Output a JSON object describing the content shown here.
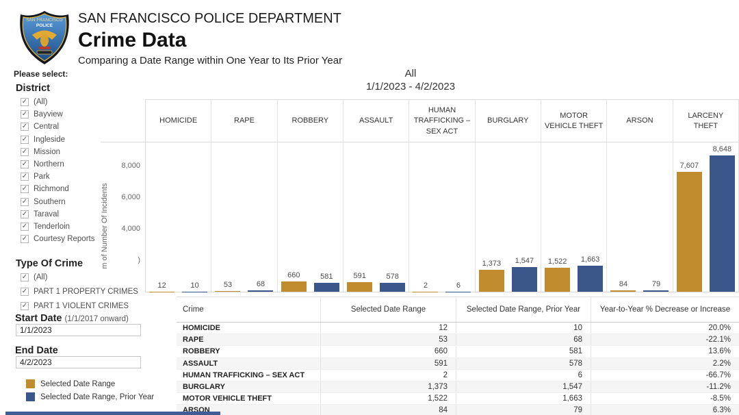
{
  "header": {
    "department": "SAN FRANCISCO POLICE DEPARTMENT",
    "title": "Crime Data",
    "subtitle": "Comparing a Date Range within One Year to Its Prior Year",
    "logo_text": {
      "line1": "SAN FRANCISCO",
      "line2": "POLICE"
    }
  },
  "sidebar": {
    "prompt": "Please select:",
    "district": {
      "label": "District",
      "options": [
        {
          "label": "(All)",
          "checked": true
        },
        {
          "label": "Bayview",
          "checked": true
        },
        {
          "label": "Central",
          "checked": true
        },
        {
          "label": "Ingleside",
          "checked": true
        },
        {
          "label": "Mission",
          "checked": true
        },
        {
          "label": "Northern",
          "checked": true
        },
        {
          "label": "Park",
          "checked": true
        },
        {
          "label": "Richmond",
          "checked": true
        },
        {
          "label": "Southern",
          "checked": true
        },
        {
          "label": "Taraval",
          "checked": true
        },
        {
          "label": "Tenderloin",
          "checked": true
        },
        {
          "label": "Courtesy Reports",
          "checked": true
        }
      ]
    },
    "type_of_crime": {
      "label": "Type Of Crime",
      "options": [
        {
          "label": "(All)",
          "checked": true
        },
        {
          "label": "PART 1 PROPERTY CRIMES",
          "checked": true
        },
        {
          "label": "PART 1 VIOLENT CRIMES",
          "checked": true
        }
      ]
    },
    "start_date": {
      "label": "Start Date",
      "hint": "(1/1/2017 onward)",
      "value": "1/1/2023"
    },
    "end_date": {
      "label": "End Date",
      "value": "4/2/2023"
    },
    "legend": [
      {
        "label": "Selected Date Range",
        "color": "#c08c2e"
      },
      {
        "label": "Selected Date Range, Prior Year",
        "color": "#3a568a"
      }
    ]
  },
  "chart_data": {
    "type": "bar",
    "title": "All",
    "subtitle": "1/1/2023 - 4/2/2023",
    "categories": [
      "HOMICIDE",
      "RAPE",
      "ROBBERY",
      "ASSAULT",
      "HUMAN TRAFFICKING – SEX ACT",
      "BURGLARY",
      "MOTOR VEHICLE THEFT",
      "ARSON",
      "LARCENY THEFT"
    ],
    "series": [
      {
        "name": "Selected Date Range",
        "color": "#c08c2e",
        "values": [
          12,
          53,
          660,
          591,
          2,
          1373,
          1522,
          84,
          7607
        ],
        "labels": [
          "12",
          "53",
          "660",
          "591",
          "2",
          "1,373",
          "1,522",
          "84",
          "7,607"
        ]
      },
      {
        "name": "Selected Date Range, Prior Year",
        "color": "#3a568a",
        "values": [
          10,
          68,
          581,
          578,
          6,
          1547,
          1663,
          79,
          8648
        ],
        "labels": [
          "10",
          "68",
          "581",
          "578",
          "6",
          "1,547",
          "1,663",
          "79",
          "8,648"
        ]
      }
    ],
    "ylabel_visible": "m of Number Of Incidents",
    "yticks": [
      {
        "label": "8,000",
        "value": 8000
      },
      {
        "label": "6,000",
        "value": 6000
      },
      {
        "label": "4,000",
        "value": 4000
      },
      {
        "label": ")",
        "value": 2000
      }
    ],
    "ylim": [
      0,
      9500
    ],
    "grid": false,
    "legend_position": "bottom-left"
  },
  "table": {
    "columns": [
      "Crime",
      "Selected Date Range",
      "Selected Date Range, Prior Year",
      "Year-to-Year % Decrease or Increase"
    ],
    "rows": [
      [
        "HOMICIDE",
        "12",
        "10",
        "20.0%"
      ],
      [
        "RAPE",
        "53",
        "68",
        "-22.1%"
      ],
      [
        "ROBBERY",
        "660",
        "581",
        "13.6%"
      ],
      [
        "ASSAULT",
        "591",
        "578",
        "2.2%"
      ],
      [
        "HUMAN TRAFFICKING – SEX ACT",
        "2",
        "6",
        "-66.7%"
      ],
      [
        "BURGLARY",
        "1,373",
        "1,547",
        "-11.2%"
      ],
      [
        "MOTOR VEHICLE THEFT",
        "1,522",
        "1,663",
        "-8.5%"
      ],
      [
        "ARSON",
        "84",
        "79",
        "6.3%"
      ]
    ]
  },
  "colors": {
    "selected_range": "#c08c2e",
    "prior_year": "#3a568a",
    "bottom_bar": "#3e5c96"
  }
}
